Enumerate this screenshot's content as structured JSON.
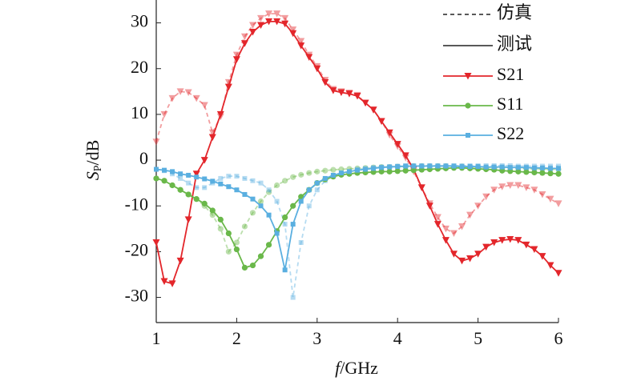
{
  "chart_data": {
    "type": "line",
    "xlabel": {
      "symbol": "f",
      "unit": "/GHz"
    },
    "ylabel": {
      "symbol": "S",
      "subscript": "P",
      "unit": "/dB"
    },
    "line_styles": {
      "simulated": "仿真",
      "measured": "测试"
    },
    "x": [
      1,
      1.1,
      1.2,
      1.3,
      1.4,
      1.5,
      1.6,
      1.7,
      1.8,
      1.9,
      2,
      2.1,
      2.2,
      2.3,
      2.4,
      2.5,
      2.6,
      2.7,
      2.8,
      2.9,
      3,
      3.1,
      3.2,
      3.3,
      3.4,
      3.5,
      3.6,
      3.7,
      3.8,
      3.9,
      4,
      4.1,
      4.2,
      4.3,
      4.4,
      4.5,
      4.6,
      4.7,
      4.8,
      4.9,
      5,
      5.1,
      5.2,
      5.3,
      5.4,
      5.5,
      5.6,
      5.7,
      5.8,
      5.9,
      6
    ],
    "xlim": [
      1,
      6
    ],
    "xticks": [
      1,
      2,
      3,
      4,
      5,
      6
    ],
    "ylim": [
      -35.5,
      35
    ],
    "yticks": [
      -30,
      -20,
      -10,
      0,
      10,
      20,
      30
    ],
    "series": [
      {
        "name": "S21",
        "color": "#e3262b",
        "marker": "triangle",
        "values": [
          -18,
          -26.5,
          -27,
          -22,
          -13,
          -3,
          0,
          5,
          10,
          16,
          22,
          25.5,
          28,
          29.5,
          30.3,
          30.3,
          29.8,
          27.7,
          25,
          22.5,
          20,
          17,
          15.2,
          14.8,
          14.5,
          14,
          12.5,
          11,
          8.5,
          6,
          3.5,
          1,
          -2,
          -6,
          -10,
          -14,
          -17.5,
          -20.5,
          -22,
          -21.5,
          -20.5,
          -19,
          -18,
          -17.5,
          -17.3,
          -17.5,
          -18.5,
          -19.5,
          -21,
          -23,
          -24.7
        ],
        "simulated": [
          4,
          10,
          13.5,
          15,
          14.8,
          13.5,
          12,
          6,
          9.5,
          17,
          23,
          27,
          29.5,
          31,
          32,
          32,
          31,
          28.5,
          26,
          23,
          20.5,
          17.5,
          15.5,
          15,
          14.7,
          14.2,
          12.5,
          11,
          8.5,
          5.5,
          3,
          0.5,
          -2.5,
          -6,
          -9.5,
          -12.5,
          -15,
          -16,
          -14.5,
          -12,
          -10,
          -8,
          -6.5,
          -5.8,
          -5.5,
          -5.5,
          -6,
          -6.5,
          -7.5,
          -8.5,
          -9.5
        ]
      },
      {
        "name": "S11",
        "color": "#6ab84a",
        "marker": "circle",
        "values": [
          -4,
          -4.5,
          -5.5,
          -6.5,
          -7.5,
          -8.5,
          -9.5,
          -11,
          -13,
          -16,
          -19.5,
          -23.5,
          -23,
          -21,
          -18.5,
          -15.5,
          -12.5,
          -10,
          -8,
          -6.5,
          -5,
          -4.2,
          -3.6,
          -3.2,
          -3,
          -2.8,
          -2.7,
          -2.6,
          -2.5,
          -2.5,
          -2.4,
          -2.3,
          -2.2,
          -2.1,
          -2,
          -1.9,
          -1.8,
          -1.7,
          -1.7,
          -1.8,
          -1.9,
          -2,
          -2.1,
          -2.3,
          -2.4,
          -2.5,
          -2.6,
          -2.7,
          -2.8,
          -2.9,
          -3
        ],
        "simulated": [
          -4,
          -4.5,
          -5.5,
          -6.5,
          -7.5,
          -8.5,
          -10,
          -12,
          -15,
          -20,
          -18,
          -14.5,
          -11.5,
          -9,
          -7,
          -5.5,
          -4.5,
          -3.7,
          -3.2,
          -2.8,
          -2.5,
          -2.3,
          -2.1,
          -2,
          -1.9,
          -1.8,
          -1.7,
          -1.6,
          -1.5,
          -1.5,
          -1.4,
          -1.4,
          -1.3,
          -1.3,
          -1.3,
          -1.3,
          -1.3,
          -1.4,
          -1.4,
          -1.5,
          -1.5,
          -1.6,
          -1.6,
          -1.7,
          -1.7,
          -1.8,
          -1.8,
          -1.9,
          -1.9,
          -2,
          -2
        ]
      },
      {
        "name": "S22",
        "color": "#5aafe0",
        "marker": "square",
        "values": [
          -2,
          -2.2,
          -2.5,
          -3,
          -3.3,
          -3.7,
          -4.1,
          -4.6,
          -5.2,
          -5.8,
          -6.5,
          -7.5,
          -8.5,
          -10,
          -12,
          -16,
          -24,
          -14,
          -9,
          -6.5,
          -5,
          -4,
          -3.3,
          -2.8,
          -2.5,
          -2.2,
          -2,
          -1.8,
          -1.6,
          -1.5,
          -1.4,
          -1.3,
          -1.3,
          -1.3,
          -1.3,
          -1.3,
          -1.3,
          -1.3,
          -1.4,
          -1.4,
          -1.4,
          -1.5,
          -1.5,
          -1.5,
          -1.6,
          -1.6,
          -1.6,
          -1.7,
          -1.7,
          -1.8,
          -1.8
        ],
        "simulated": [
          -2,
          -2.3,
          -3,
          -4,
          -5,
          -6,
          -6,
          -5,
          -4,
          -3.5,
          -3.5,
          -4,
          -4.5,
          -5,
          -6.5,
          -9,
          -14,
          -30,
          -18,
          -10,
          -6.5,
          -4.5,
          -3.5,
          -3,
          -2.5,
          -2,
          -1.8,
          -1.6,
          -1.5,
          -1.4,
          -1.3,
          -1.2,
          -1.2,
          -1.2,
          -1.2,
          -1.2,
          -1.2,
          -1.2,
          -1.2,
          -1.2,
          -1.2,
          -1.2,
          -1.2,
          -1.2,
          -1.2,
          -1.3,
          -1.3,
          -1.3,
          -1.3,
          -1.3,
          -1.3
        ]
      }
    ]
  }
}
